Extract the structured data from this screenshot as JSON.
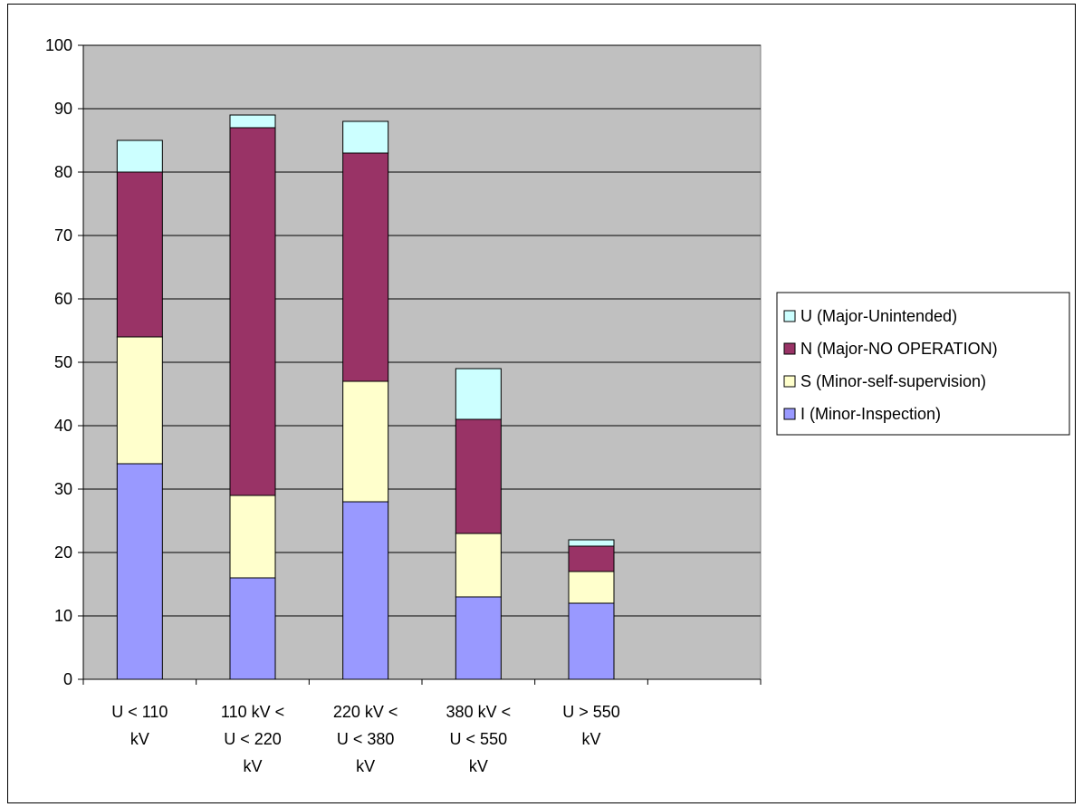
{
  "chart_data": {
    "type": "bar",
    "stacked": true,
    "title": "",
    "xlabel": "",
    "ylabel": "",
    "ylim": [
      0,
      100
    ],
    "yticks": [
      0,
      10,
      20,
      30,
      40,
      50,
      60,
      70,
      80,
      90,
      100
    ],
    "grid": true,
    "legend_position": "right",
    "categories": [
      [
        "U < 110",
        "kV"
      ],
      [
        "110 kV <",
        "U < 220",
        "kV"
      ],
      [
        "220 kV <",
        "U < 380",
        "kV"
      ],
      [
        "380 kV <",
        "U < 550",
        "kV"
      ],
      [
        "U > 550",
        "kV"
      ],
      [
        ""
      ]
    ],
    "series": [
      {
        "name": "I (Minor-Inspection)",
        "color": "#9999ff",
        "values": [
          34,
          16,
          28,
          13,
          12,
          null
        ]
      },
      {
        "name": "S (Minor-self-supervision)",
        "color": "#ffffcc",
        "values": [
          20,
          13,
          19,
          10,
          5,
          null
        ]
      },
      {
        "name": "N (Major-NO OPERATION)",
        "color": "#993366",
        "values": [
          26,
          58,
          36,
          18,
          4,
          null
        ]
      },
      {
        "name": "U (Major-Unintended)",
        "color": "#ccffff",
        "values": [
          5,
          2,
          5,
          8,
          1,
          null
        ]
      }
    ],
    "legend_order": [
      3,
      2,
      1,
      0
    ],
    "plot_background": "#c0c0c0"
  }
}
